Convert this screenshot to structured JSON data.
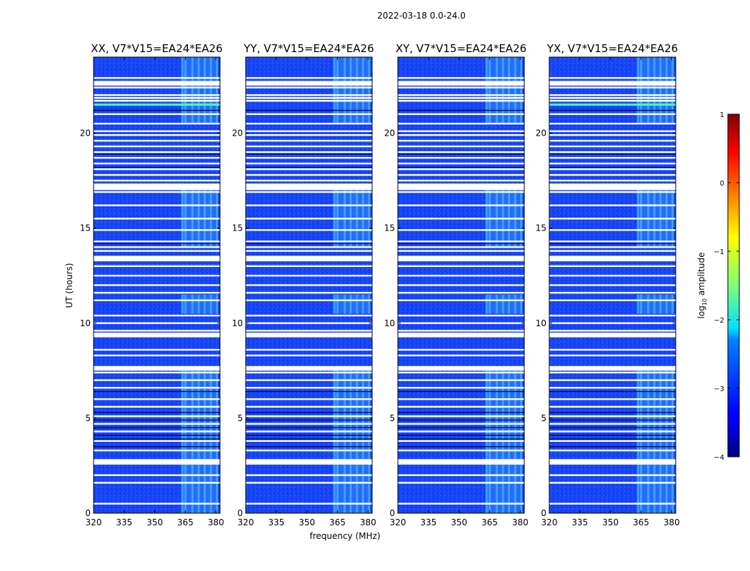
{
  "suptitle": "2022-03-18 0.0-24.0",
  "chart_data": {
    "type": "heatmap",
    "xlabel": "frequency (MHz)",
    "ylabel": "UT (hours)",
    "x_range": [
      320,
      382
    ],
    "y_range": [
      0,
      24
    ],
    "x_ticks": [
      "320",
      "335",
      "350",
      "365",
      "380"
    ],
    "x_tick_values": [
      320,
      335,
      350,
      365,
      380
    ],
    "y_ticks": [
      "0",
      "5",
      "10",
      "15",
      "20"
    ],
    "y_tick_values": [
      0,
      5,
      10,
      15,
      20
    ],
    "panels": [
      {
        "title": "XX, V7*V15=EA24*EA26",
        "green_line_hour": 21.5
      },
      {
        "title": "YY, V7*V15=EA24*EA26",
        "green_line_hour": null
      },
      {
        "title": "XY, V7*V15=EA24*EA26",
        "green_line_hour": null
      },
      {
        "title": "YX, V7*V15=EA24*EA26",
        "green_line_hour": 21.5
      }
    ],
    "rfi_band_mhz": [
      363,
      381
    ],
    "rfi_columns_mhz": [
      363,
      364.5,
      368,
      371,
      374,
      377,
      380
    ],
    "rfi_hour_ranges": [
      [
        0,
        7.5
      ],
      [
        10.5,
        11.5
      ],
      [
        14,
        17
      ],
      [
        20.5,
        24
      ]
    ],
    "flagged_hours": [
      0.5,
      1.6,
      2.0,
      2.6,
      2.8,
      3.3,
      3.8,
      4.3,
      4.7,
      5.1,
      5.6,
      6.0,
      6.6,
      7.0,
      7.4,
      7.7,
      8.3,
      8.6,
      9.3,
      9.6,
      10.0,
      10.4,
      11.2,
      11.6,
      12.0,
      12.5,
      13.0,
      13.3,
      13.5,
      13.8,
      14.0,
      14.3,
      14.9,
      15.5,
      16.2,
      16.9,
      17.3,
      17.5,
      17.8,
      18.1,
      18.4,
      18.7,
      19.0,
      19.3,
      19.6,
      19.9,
      20.1,
      20.5,
      21.0,
      21.7,
      22.0,
      22.4,
      22.7,
      22.9
    ],
    "colorbar": {
      "label": "log10 amplitude",
      "label_main": "log",
      "label_sub": "10",
      "label_rest": " amplitude",
      "range": [
        -4,
        1
      ],
      "ticks": [
        "1",
        "0",
        "−1",
        "−2",
        "−3",
        "−4"
      ],
      "tick_values": [
        1,
        0,
        -1,
        -2,
        -3,
        -4
      ]
    }
  }
}
